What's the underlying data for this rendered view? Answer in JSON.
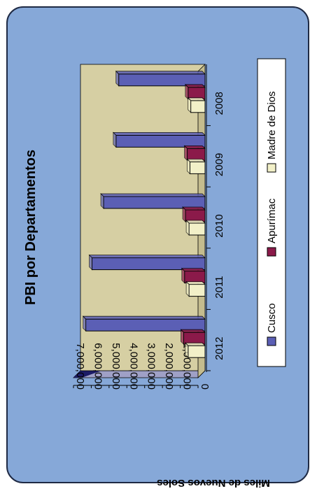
{
  "chart_data": {
    "type": "bar",
    "title": "PBI por Departamentos",
    "xlabel": "",
    "ylabel": "Miles de Nuevos Soles",
    "categories": [
      "2008",
      "2009",
      "2010",
      "2011",
      "2012"
    ],
    "series": [
      {
        "name": "Cusco",
        "values": [
          4850000,
          5000000,
          5700000,
          6350000,
          6700000
        ]
      },
      {
        "name": "Apurímac",
        "values": [
          950000,
          1000000,
          1100000,
          1150000,
          1200000
        ]
      },
      {
        "name": "Madre de Dios",
        "values": [
          800000,
          850000,
          900000,
          900000,
          950000
        ]
      }
    ],
    "ylim": [
      0,
      7000000
    ],
    "yticks": [
      "0",
      "1,000,000",
      "2,000,000",
      "3,000,000",
      "4,000,000",
      "5,000,000",
      "6,000,000",
      "7,000,000"
    ],
    "legend": "bottom",
    "grid": false,
    "orientation": "rotated-90-clockwise",
    "colors": {
      "Cusco": "#5b5fb5",
      "Apurímac": "#8b1a4a",
      "Madre de Dios": "#f2f0c8",
      "plot_background": "#d6cfa3",
      "card_background": "#86a8d8"
    }
  }
}
